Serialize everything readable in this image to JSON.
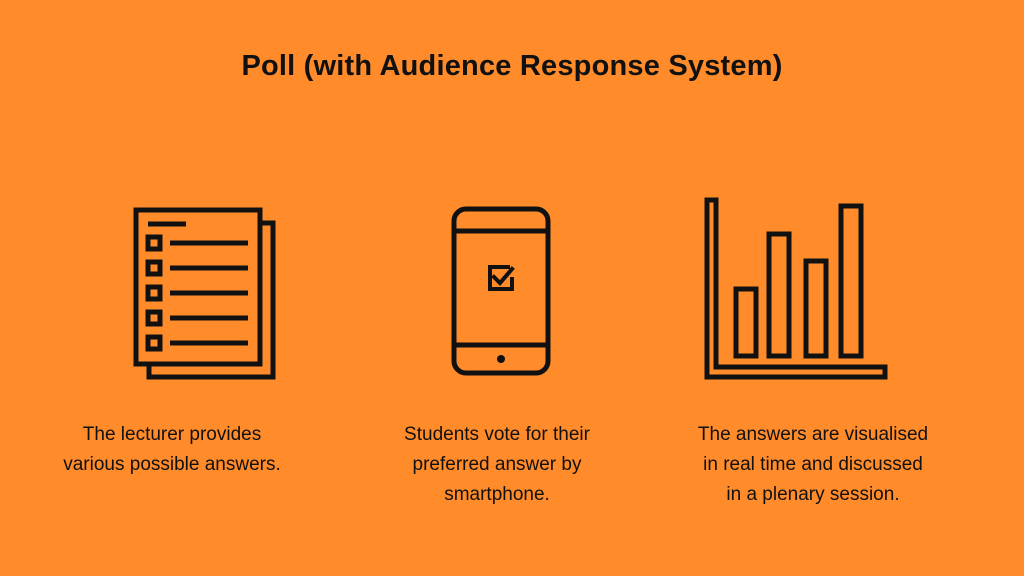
{
  "title": "Poll (with Audience Response System)",
  "background_color": "#FF8B2B",
  "foreground_color": "#111111",
  "steps": [
    {
      "icon": "checklist-document-icon",
      "caption": "The lecturer provides\nvarious possible answers."
    },
    {
      "icon": "smartphone-checkbox-icon",
      "caption": "Students vote for their\npreferred answer by\nsmartphone."
    },
    {
      "icon": "bar-chart-icon",
      "caption": "The answers are visualised\nin real time and discussed\nin a plenary session."
    }
  ]
}
